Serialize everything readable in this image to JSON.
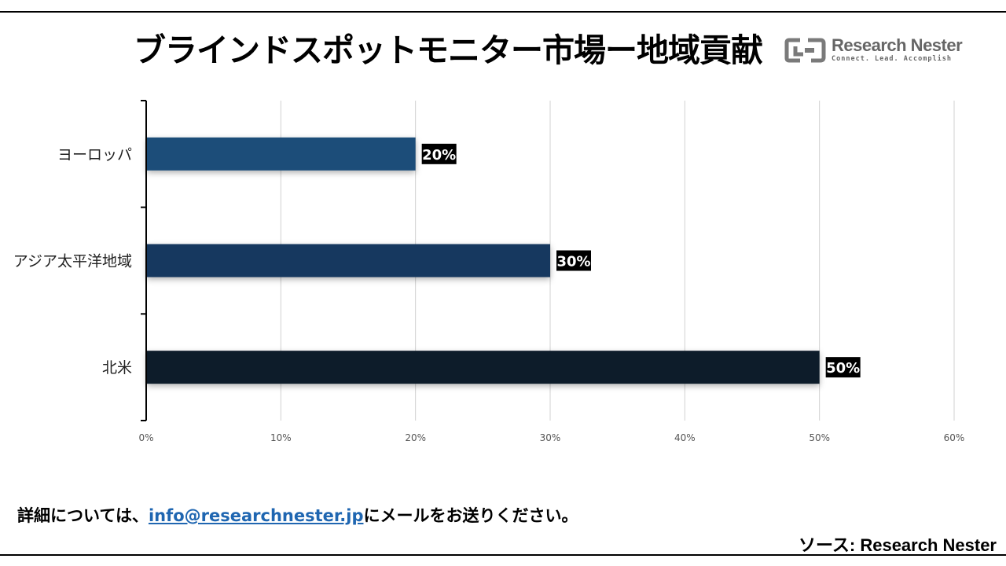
{
  "page": {
    "title": "ブラインドスポットモニター市場ー地域貢献",
    "logo": {
      "name": "Research Nester",
      "tagline": "Connect. Lead. Accomplish"
    },
    "footer": {
      "prefix": "詳細については、",
      "email": "info@researchnester.jp",
      "suffix": "にメールをお送りください。"
    },
    "source": "ソース: Research Nester"
  },
  "colors": {
    "europe_bar": "#1f4e79",
    "apac_bar": "#17375e",
    "na_bar": "#0d1b2a",
    "label_bg": "#000000",
    "label_text": "#ffffff",
    "grid": "#d0d0d0",
    "axis": "#000000"
  },
  "chart_data": {
    "type": "bar",
    "orientation": "horizontal",
    "categories": [
      "ヨーロッパ",
      "アジア太平洋地域",
      "北米"
    ],
    "values": [
      20,
      30,
      50
    ],
    "value_labels": [
      "20%",
      "30%",
      "50%"
    ],
    "xlim": [
      0,
      60
    ],
    "xticks": [
      0,
      10,
      20,
      30,
      40,
      50,
      60
    ],
    "xtick_labels": [
      "0%",
      "10%",
      "20%",
      "30%",
      "40%",
      "50%",
      "60%"
    ],
    "grid": true,
    "legend": "none"
  }
}
